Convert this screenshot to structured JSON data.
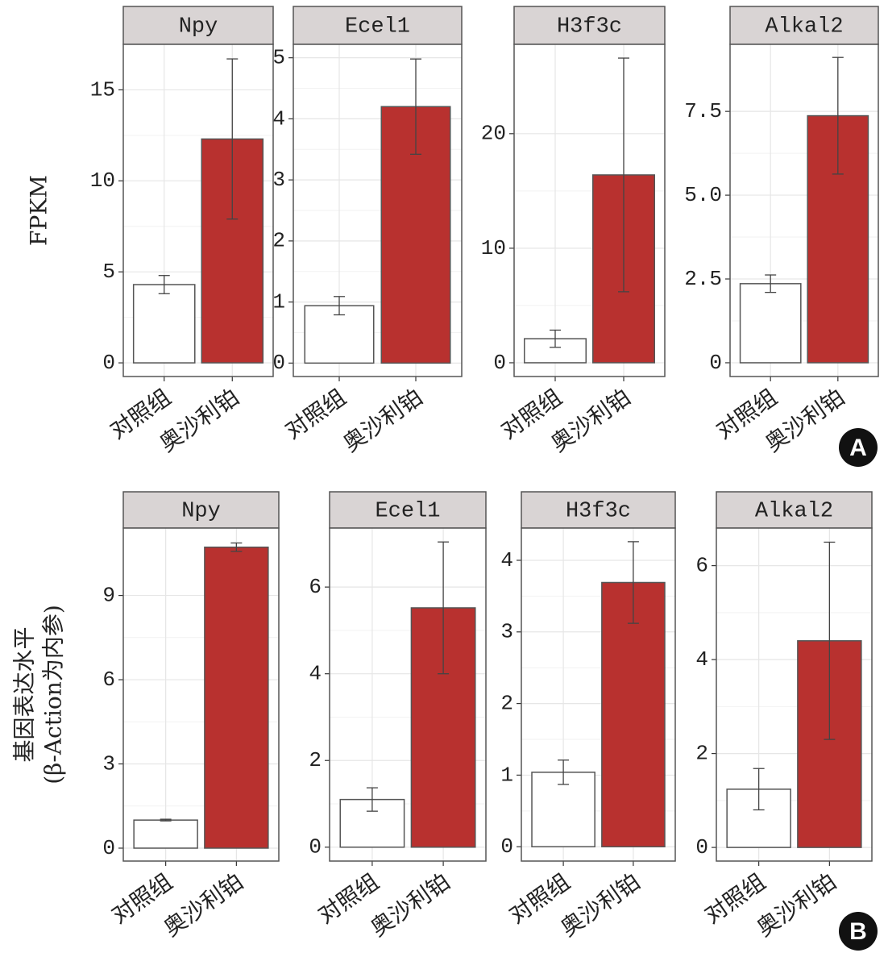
{
  "chart_data": [
    {
      "type": "bar",
      "title": "Npy",
      "y_label": "FPKM",
      "categories": [
        "对照组",
        "奥沙利铂"
      ],
      "values": [
        4.3,
        12.3
      ],
      "errors": [
        0.5,
        4.4
      ],
      "colors": [
        "#ffffff",
        "#b8312f"
      ],
      "ylim": [
        -0.75,
        17.5
      ],
      "yticks": [
        0,
        5,
        10,
        15
      ],
      "grid": true
    },
    {
      "type": "bar",
      "title": "Ecel1",
      "categories": [
        "对照组",
        "奥沙利铂"
      ],
      "values": [
        0.94,
        4.2
      ],
      "errors": [
        0.15,
        0.78
      ],
      "colors": [
        "#ffffff",
        "#b8312f"
      ],
      "ylim": [
        -0.22,
        5.22
      ],
      "yticks": [
        0,
        1,
        2,
        3,
        4,
        5
      ],
      "grid": true
    },
    {
      "type": "bar",
      "title": "H3f3c",
      "categories": [
        "对照组",
        "奥沙利铂"
      ],
      "values": [
        2.1,
        16.4
      ],
      "errors": [
        0.75,
        10.2
      ],
      "colors": [
        "#ffffff",
        "#b8312f"
      ],
      "ylim": [
        -1.2,
        27.8
      ],
      "yticks": [
        0,
        10,
        20
      ],
      "grid": true
    },
    {
      "type": "bar",
      "title": "Alkal2",
      "categories": [
        "对照组",
        "奥沙利铂"
      ],
      "values": [
        2.36,
        7.37
      ],
      "errors": [
        0.26,
        1.74
      ],
      "colors": [
        "#ffffff",
        "#b8312f"
      ],
      "ylim": [
        -0.41,
        9.5
      ],
      "yticks": [
        0,
        2.5,
        {
          "value": 5,
          "label": "5.0"
        },
        7.5
      ],
      "grid": true
    },
    {
      "type": "bar",
      "title": "Npy",
      "y_label": [
        "基因表达水平",
        "(β-Action为内参)"
      ],
      "categories": [
        "对照组",
        "奥沙利铂"
      ],
      "values": [
        1.0,
        10.72
      ],
      "errors": [
        0.03,
        0.15
      ],
      "colors": [
        "#ffffff",
        "#b8312f"
      ],
      "ylim": [
        -0.46,
        11.4
      ],
      "yticks": [
        0,
        3,
        6,
        9
      ],
      "grid": true
    },
    {
      "type": "bar",
      "title": "Ecel1",
      "categories": [
        "对照组",
        "奥沙利铂"
      ],
      "values": [
        1.1,
        5.52
      ],
      "errors": [
        0.27,
        1.52
      ],
      "colors": [
        "#ffffff",
        "#b8312f"
      ],
      "ylim": [
        -0.32,
        7.36
      ],
      "yticks": [
        0,
        2,
        4,
        6
      ],
      "grid": true
    },
    {
      "type": "bar",
      "title": "H3f3c",
      "categories": [
        "对照组",
        "奥沙利铂"
      ],
      "values": [
        1.04,
        3.69
      ],
      "errors": [
        0.17,
        0.57
      ],
      "colors": [
        "#ffffff",
        "#b8312f"
      ],
      "ylim": [
        -0.2,
        4.45
      ],
      "yticks": [
        0,
        1,
        2,
        3,
        4
      ],
      "grid": true
    },
    {
      "type": "bar",
      "title": "Alkal2",
      "categories": [
        "对照组",
        "奥沙利铂"
      ],
      "values": [
        1.24,
        4.4
      ],
      "errors": [
        0.44,
        2.1
      ],
      "colors": [
        "#ffffff",
        "#b8312f"
      ],
      "ylim": [
        -0.29,
        6.8
      ],
      "yticks": [
        0,
        2,
        4,
        6
      ],
      "grid": true
    }
  ],
  "panel_labels": [
    "A",
    "B"
  ]
}
